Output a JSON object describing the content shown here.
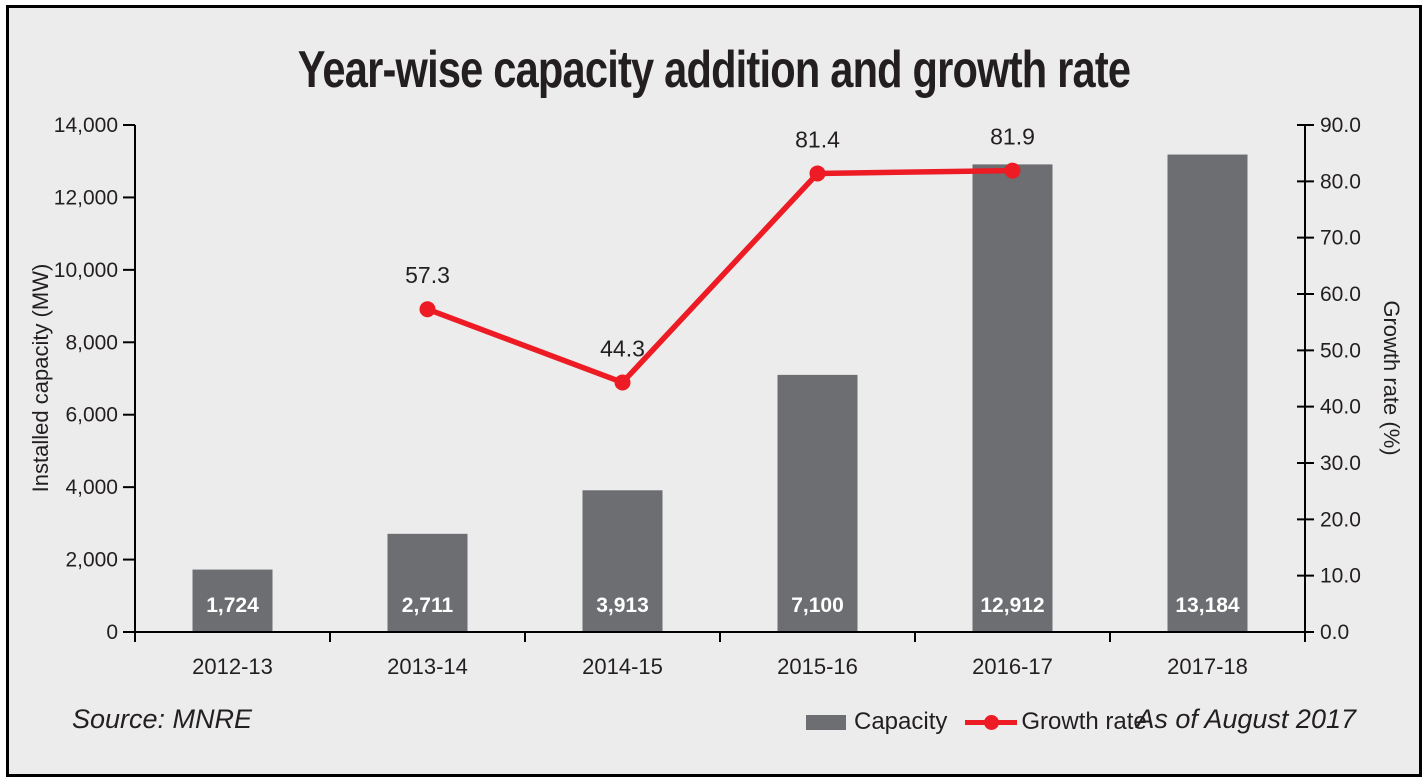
{
  "title": "Year-wise capacity addition and growth rate",
  "source_note": "Source: MNRE",
  "as_of_note": "As of August 2017",
  "colors": {
    "background": "#ececec",
    "frame_border": "#000000",
    "bar": "#6d6e71",
    "line": "#ed1c24",
    "text": "#231f20",
    "bar_value_label": "#ffffff"
  },
  "legend": [
    {
      "label": "Capacity",
      "type": "bar",
      "color": "#6d6e71"
    },
    {
      "label": "Growth rate",
      "type": "line",
      "color": "#ed1c24"
    }
  ],
  "chart_data": {
    "type": "bar",
    "subtype": "bar-and-line-dual-axis",
    "title": "Year-wise capacity addition and growth rate",
    "categories": [
      "2012-13",
      "2013-14",
      "2014-15",
      "2015-16",
      "2016-17",
      "2017-18"
    ],
    "series": [
      {
        "name": "Capacity",
        "type": "bar",
        "axis": "left",
        "color": "#6d6e71",
        "values": [
          1724,
          2711,
          3913,
          7100,
          12912,
          13184
        ],
        "value_labels": [
          "1,724",
          "2,711",
          "3,913",
          "7,100",
          "12,912",
          "13,184"
        ]
      },
      {
        "name": "Growth rate",
        "type": "line",
        "axis": "right",
        "color": "#ed1c24",
        "values": [
          null,
          57.3,
          44.3,
          81.4,
          81.9,
          null
        ],
        "value_labels": [
          null,
          "57.3",
          "44.3",
          "81.4",
          "81.9",
          null
        ]
      }
    ],
    "left_axis": {
      "title": "Installed capacity (MW)",
      "min": 0,
      "max": 14000,
      "step": 2000,
      "tick_labels": [
        "0",
        "2,000",
        "4,000",
        "6,000",
        "8,000",
        "10,000",
        "12,000",
        "14,000"
      ]
    },
    "right_axis": {
      "title": "Growth rate (%)",
      "min": 0,
      "max": 90,
      "step": 10,
      "tick_labels": [
        "0.0",
        "10.0",
        "20.0",
        "30.0",
        "40.0",
        "50.0",
        "60.0",
        "70.0",
        "80.0",
        "90.0"
      ]
    },
    "grid": false,
    "legend_position": "bottom"
  }
}
